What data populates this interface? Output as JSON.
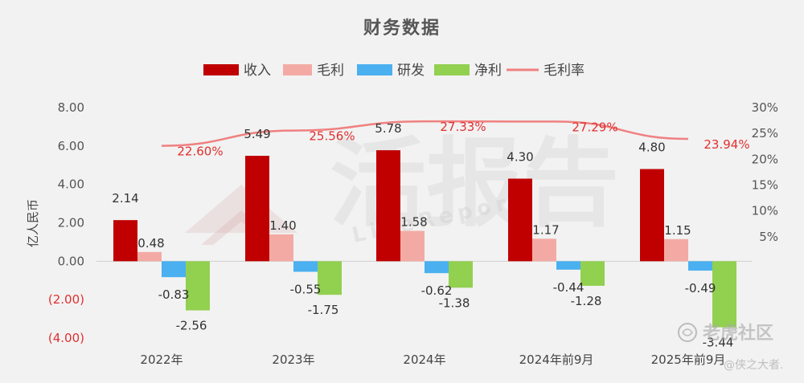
{
  "chart_data": {
    "type": "bar",
    "title": "财务数据",
    "categories": [
      "2022年",
      "2023年",
      "2024年",
      "2024年前9月",
      "2025年前9月"
    ],
    "series": [
      {
        "name": "收入",
        "kind": "bar",
        "color": "#c00000",
        "values": [
          2.14,
          5.49,
          5.78,
          4.3,
          4.8
        ],
        "labels": [
          "2.14",
          "5.49",
          "5.78",
          "4.30",
          "4.80"
        ]
      },
      {
        "name": "毛利",
        "kind": "bar",
        "color": "#f4aaa4",
        "values": [
          0.48,
          1.4,
          1.58,
          1.17,
          1.15
        ],
        "labels": [
          "0.48",
          "1.40",
          "1.58",
          "1.17",
          "1.15"
        ]
      },
      {
        "name": "研发",
        "kind": "bar",
        "color": "#4ab0f0",
        "values": [
          -0.83,
          -0.55,
          -0.62,
          -0.44,
          -0.49
        ],
        "labels": [
          "-0.83",
          "-0.55",
          "-0.62",
          "-0.44",
          "-0.49"
        ]
      },
      {
        "name": "净利",
        "kind": "bar",
        "color": "#92d050",
        "values": [
          -2.56,
          -1.75,
          -1.38,
          -1.28,
          -3.44
        ],
        "labels": [
          "-2.56",
          "-1.75",
          "-1.38",
          "-1.28",
          "-3.44"
        ]
      },
      {
        "name": "毛利率",
        "kind": "line",
        "axis": "right",
        "color": "#f08080",
        "values": [
          22.6,
          25.56,
          27.33,
          27.29,
          23.94
        ],
        "labels": [
          "22.60%",
          "25.56%",
          "27.33%",
          "27.29%",
          "23.94%"
        ]
      }
    ],
    "ylabel": "亿人民币",
    "ylim": [
      -4,
      8
    ],
    "y_ticks": [
      8,
      6,
      4,
      2,
      0,
      -2,
      -4
    ],
    "y_tick_labels": [
      "8.00",
      "6.00",
      "4.00",
      "2.00",
      "0.00",
      "(2.00)",
      "(4.00)"
    ],
    "y2lim": [
      0,
      30
    ],
    "y2_ticks": [
      30,
      25,
      20,
      15,
      10,
      5
    ],
    "y2_tick_labels": [
      "30%",
      "25%",
      "20%",
      "15%",
      "10%",
      "5%"
    ],
    "legend_position": "top",
    "grid": false
  },
  "watermark": {
    "main": "活报告",
    "sub": "LiveReport"
  },
  "corner_watermark": {
    "brand": "老虎社区",
    "user": "@侠之大者."
  }
}
